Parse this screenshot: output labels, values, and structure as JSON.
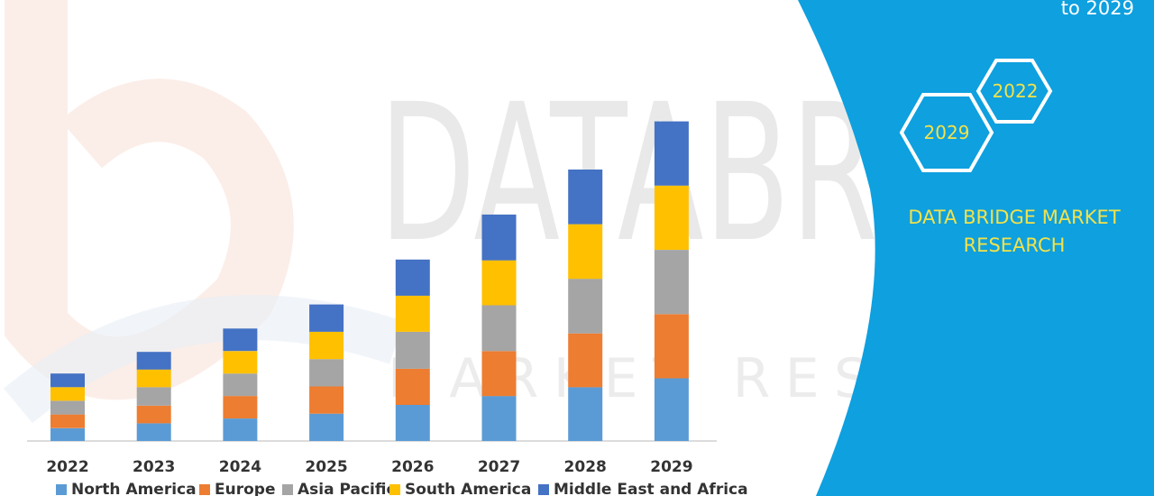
{
  "header": {
    "corner_text": "to 2029"
  },
  "brand": {
    "name": "DATA BRIDGE MARKET RESEARCH",
    "hex_labels": [
      "2022",
      "2029"
    ],
    "watermark_text": "DATABRIDGE",
    "watermark_subtext": "MARKET RESEARCH"
  },
  "colors": {
    "panel": "#0ea0df",
    "brand_text": "#f2e24a"
  },
  "chart_data": {
    "type": "bar",
    "stacked": true,
    "categories": [
      "2022",
      "2023",
      "2024",
      "2025",
      "2026",
      "2027",
      "2028",
      "2029"
    ],
    "series": [
      {
        "name": "North America",
        "color": "#5b9bd5",
        "values": [
          16,
          22,
          28,
          34,
          45,
          56,
          67,
          78
        ]
      },
      {
        "name": "Europe",
        "color": "#ed7d31",
        "values": [
          17,
          22,
          28,
          34,
          45,
          56,
          67,
          80
        ]
      },
      {
        "name": "Asia Pacific",
        "color": "#a5a5a5",
        "values": [
          17,
          23,
          28,
          34,
          46,
          57,
          68,
          80
        ]
      },
      {
        "name": "South America",
        "color": "#ffc000",
        "values": [
          17,
          22,
          28,
          34,
          45,
          56,
          68,
          80
        ]
      },
      {
        "name": "Middle East and Africa",
        "color": "#4472c4",
        "values": [
          17,
          22,
          28,
          34,
          45,
          57,
          68,
          80
        ]
      }
    ],
    "ylim": [
      0,
      420
    ],
    "grid": false,
    "legend": "bottom"
  }
}
